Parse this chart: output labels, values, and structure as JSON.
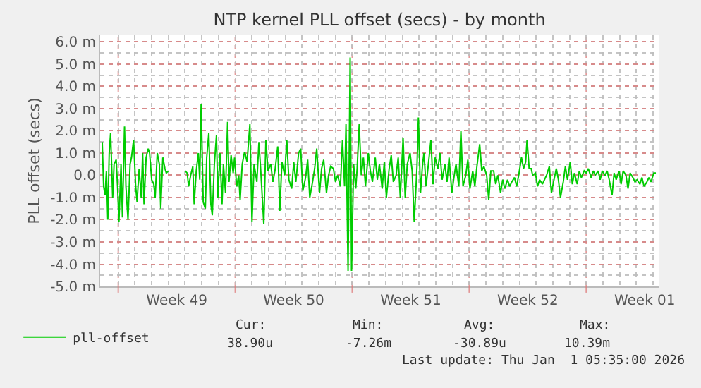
{
  "chart_data": {
    "type": "line",
    "title": "NTP kernel PLL offset (secs) - by month",
    "ylabel": "PLL offset (secs)",
    "x": [
      "2025-11-30T01:00",
      "2025-11-30T03:00",
      "2025-11-30T05:00",
      "2025-11-30T07:00",
      "2025-11-30T09:00",
      "2025-11-30T11:00",
      "2025-11-30T13:00",
      "2025-11-30T16:00",
      "2025-11-30T18:00",
      "2025-11-30T21:00",
      "2025-11-30T23:00",
      "2025-12-01T01:00",
      "2025-12-01T04:00",
      "2025-12-01T06:00",
      "2025-12-01T09:00",
      "2025-12-01T11:00",
      "2025-12-01T14:00",
      "2025-12-01T17:00",
      "2025-12-01T19:00",
      "2025-12-01T22:00",
      "2025-12-02T01:00",
      "2025-12-02T03:00",
      "2025-12-02T06:00",
      "2025-12-02T09:00",
      "2025-12-02T11:00",
      "2025-12-02T13:00",
      "2025-12-02T16:00",
      "2025-12-02T19:00",
      "2025-12-02T21:00",
      "2025-12-03T00:00",
      "2025-12-03T03:00",
      "2025-12-03T05:00",
      "2025-12-03T08:00",
      "2025-12-03T11:00",
      "2025-12-03T13:00",
      "2025-12-03T16:00",
      "2025-12-03T19:00",
      "2025-12-03T21:00",
      "2025-12-04T00:00",
      "2025-12-04T06:00",
      "2025-12-05T00:00",
      "2025-12-05T03:00",
      "2025-12-05T05:00",
      "2025-12-05T08:00",
      "2025-12-05T11:00",
      "2025-12-05T13:00",
      "2025-12-05T16:00",
      "2025-12-05T19:00",
      "2025-12-05T21:00",
      "2025-12-05T23:00",
      "2025-12-06T02:00",
      "2025-12-06T05:00",
      "2025-12-06T07:00",
      "2025-12-06T10:00",
      "2025-12-06T13:00",
      "2025-12-06T15:00",
      "2025-12-06T18:00",
      "2025-12-06T21:00",
      "2025-12-06T23:00",
      "2025-12-07T02:00",
      "2025-12-07T05:00",
      "2025-12-07T07:00",
      "2025-12-07T10:00",
      "2025-12-07T13:00",
      "2025-12-07T15:00",
      "2025-12-07T18:00",
      "2025-12-07T21:00",
      "2025-12-07T23:00",
      "2025-12-08T02:00",
      "2025-12-08T05:00",
      "2025-12-08T07:00",
      "2025-12-08T10:00",
      "2025-12-08T13:00",
      "2025-12-08T14:00",
      "2025-12-08T17:00",
      "2025-12-08T21:00",
      "2025-12-09T00:00",
      "2025-12-09T03:00",
      "2025-12-09T07:00",
      "2025-12-09T10:00",
      "2025-12-09T13:00",
      "2025-12-09T17:00",
      "2025-12-09T20:00",
      "2025-12-09T23:00",
      "2025-12-10T03:00",
      "2025-12-10T06:00",
      "2025-12-10T09:00",
      "2025-12-10T13:00",
      "2025-12-10T16:00",
      "2025-12-10T19:00",
      "2025-12-10T23:00",
      "2025-12-11T02:00",
      "2025-12-11T05:00",
      "2025-12-11T09:00",
      "2025-12-11T12:00",
      "2025-12-11T15:00",
      "2025-12-11T19:00",
      "2025-12-11T22:00",
      "2025-12-12T01:00",
      "2025-12-12T05:00",
      "2025-12-12T08:00",
      "2025-12-12T11:00",
      "2025-12-12T15:00",
      "2025-12-12T18:00",
      "2025-12-12T21:00",
      "2025-12-13T01:00",
      "2025-12-13T04:00",
      "2025-12-13T07:00",
      "2025-12-13T11:00",
      "2025-12-13T14:00",
      "2025-12-13T17:00",
      "2025-12-13T21:00",
      "2025-12-14T00:00",
      "2025-12-14T03:00",
      "2025-12-14T07:00",
      "2025-12-14T10:00",
      "2025-12-14T13:00",
      "2025-12-14T15:00",
      "2025-12-14T18:00",
      "2025-12-14T21:00",
      "2025-12-14T23:00",
      "2025-12-15T02:00",
      "2025-12-15T05:00",
      "2025-12-15T07:00",
      "2025-12-15T10:00",
      "2025-12-15T13:00",
      "2025-12-15T16:00",
      "2025-12-15T19:00",
      "2025-12-15T23:00",
      "2025-12-16T02:00",
      "2025-12-16T05:00",
      "2025-12-16T09:00",
      "2025-12-16T12:00",
      "2025-12-16T15:00",
      "2025-12-16T19:00",
      "2025-12-16T22:00",
      "2025-12-17T01:00",
      "2025-12-17T05:00",
      "2025-12-17T08:00",
      "2025-12-17T11:00",
      "2025-12-17T15:00",
      "2025-12-17T18:00",
      "2025-12-17T21:00",
      "2025-12-18T01:00",
      "2025-12-18T04:00",
      "2025-12-18T07:00",
      "2025-12-18T11:00",
      "2025-12-18T14:00",
      "2025-12-18T17:00",
      "2025-12-18T21:00",
      "2025-12-18T23:00",
      "2025-12-19T02:00",
      "2025-12-19T05:00",
      "2025-12-19T07:00",
      "2025-12-19T10:00",
      "2025-12-19T13:00",
      "2025-12-19T17:00",
      "2025-12-19T20:00",
      "2025-12-19T23:00",
      "2025-12-20T03:00",
      "2025-12-20T06:00",
      "2025-12-20T09:00",
      "2025-12-20T13:00",
      "2025-12-20T16:00",
      "2025-12-20T19:00",
      "2025-12-20T23:00",
      "2025-12-21T02:00",
      "2025-12-21T05:00",
      "2025-12-21T09:00",
      "2025-12-21T12:00",
      "2025-12-21T15:00",
      "2025-12-21T19:00",
      "2025-12-21T22:00",
      "2025-12-22T01:00",
      "2025-12-22T05:00",
      "2025-12-22T08:00",
      "2025-12-22T11:00",
      "2025-12-22T15:00",
      "2025-12-22T18:00",
      "2025-12-22T21:00",
      "2025-12-23T01:00",
      "2025-12-23T04:00",
      "2025-12-23T07:00",
      "2025-12-23T11:00",
      "2025-12-23T14:00",
      "2025-12-23T17:00",
      "2025-12-23T21:00",
      "2025-12-24T00:00",
      "2025-12-24T03:00",
      "2025-12-24T07:00",
      "2025-12-24T10:00",
      "2025-12-24T13:00",
      "2025-12-24T17:00",
      "2025-12-24T20:00",
      "2025-12-24T23:00",
      "2025-12-25T03:00",
      "2025-12-25T06:00",
      "2025-12-25T09:00",
      "2025-12-25T11:00",
      "2025-12-25T14:00",
      "2025-12-25T17:00",
      "2025-12-25T19:00",
      "2025-12-25T23:00",
      "2025-12-26T02:00",
      "2025-12-26T05:00",
      "2025-12-26T09:00",
      "2025-12-26T12:00",
      "2025-12-26T15:00",
      "2025-12-26T19:00",
      "2025-12-26T22:00",
      "2025-12-27T01:00",
      "2025-12-27T05:00",
      "2025-12-27T08:00",
      "2025-12-27T11:00",
      "2025-12-27T15:00",
      "2025-12-27T18:00",
      "2025-12-27T21:00",
      "2025-12-28T01:00",
      "2025-12-28T04:00",
      "2025-12-28T07:00",
      "2025-12-28T11:00",
      "2025-12-28T14:00",
      "2025-12-28T17:00",
      "2025-12-28T21:00",
      "2025-12-29T00:00",
      "2025-12-29T03:00",
      "2025-12-29T07:00",
      "2025-12-29T10:00",
      "2025-12-29T13:00",
      "2025-12-29T17:00",
      "2025-12-29T20:00",
      "2025-12-29T23:00",
      "2025-12-30T03:00",
      "2025-12-30T06:00",
      "2025-12-30T09:00",
      "2025-12-30T13:00",
      "2025-12-30T16:00",
      "2025-12-30T19:00",
      "2025-12-30T23:00",
      "2025-12-31T02:00",
      "2025-12-31T05:00",
      "2025-12-31T09:00",
      "2025-12-31T12:00",
      "2025-12-31T15:00",
      "2025-12-31T19:00",
      "2025-12-31T22:00",
      "2026-01-01T01:00",
      "2026-01-01T05:00",
      "2026-01-01T08:00",
      "2026-01-01T11:00",
      "2026-01-01T15:00",
      "2026-01-01T18:00",
      "2026-01-01T21:00",
      "2026-01-02T01:00",
      "2026-01-02T04:00"
    ],
    "series": [
      {
        "name": "pll-offset",
        "color": "#00cc00",
        "values": [
          1.5,
          -0.5,
          -0.9,
          0.2,
          -2.0,
          1.0,
          1.9,
          -1.0,
          0.5,
          0.7,
          -0.5,
          -2.1,
          0.5,
          -1.9,
          2.2,
          -0.5,
          -2.0,
          0.5,
          0.8,
          1.6,
          -0.5,
          -1.2,
          0.3,
          -1.0,
          1.0,
          -1.3,
          0.8,
          1.2,
          1.0,
          -0.2,
          -0.4,
          -1.0,
          1.0,
          0.5,
          -1.5,
          0.8,
          0.3,
          0.1,
          0.2,
          null,
          0.2,
          0.1,
          -0.5,
          0.0,
          0.4,
          -1.3,
          0.2,
          1.0,
          -0.2,
          3.2,
          -1.2,
          -1.5,
          0.8,
          1.9,
          -1.3,
          -1.8,
          0.5,
          1.8,
          -1.0,
          1.0,
          -1.3,
          0.5,
          -0.8,
          2.4,
          -0.3,
          0.9,
          0.1,
          0.8,
          -0.5,
          0.0,
          -1.1,
          0.5,
          1.0,
          1.0,
          0.6,
          2.3,
          -2.1,
          0.5,
          -0.3,
          1.5,
          0.0,
          -2.2,
          1.6,
          0.2,
          0.5,
          -0.3,
          0.2,
          1.3,
          -1.6,
          0.6,
          0.0,
          1.6,
          -0.2,
          -0.6,
          0.6,
          -0.3,
          1.0,
          1.2,
          -0.7,
          -0.1,
          0.7,
          -1.0,
          -0.3,
          0.3,
          1.2,
          -0.8,
          0.3,
          0.7,
          -0.8,
          0.0,
          0.4,
          0.3,
          -0.3,
          0.0,
          -0.5,
          1.6,
          -0.5,
          2.3,
          -4.3,
          5.3,
          -4.3,
          0.5,
          -0.6,
          0.3,
          2.3,
          0.0,
          0.8,
          -0.5,
          1.0,
          0.2,
          -0.3,
          0.8,
          -0.2,
          0.5,
          -0.6,
          0.6,
          -1.0,
          0.3,
          0.9,
          -0.3,
          0.0,
          0.8,
          -1.0,
          1.7,
          -1.0,
          0.5,
          1.0,
          0.2,
          -2.1,
          0.4,
          2.6,
          -0.8,
          0.5,
          1.0,
          -0.5,
          0.4,
          1.6,
          -0.4,
          0.8,
          0.3,
          1.0,
          -0.2,
          0.5,
          -0.3,
          0.8,
          -0.8,
          -0.1,
          0.5,
          -0.5,
          2.0,
          -0.5,
          0.0,
          0.7,
          -0.6,
          0.2,
          -0.5,
          0.4,
          1.4,
          0.2,
          0.4,
          0.0,
          -1.1,
          0.2,
          0.2,
          -0.4,
          0.0,
          -0.8,
          -0.2,
          -0.6,
          -0.2,
          -0.5,
          -0.3,
          -0.1,
          -0.5,
          0.0,
          0.8,
          0.3,
          0.6,
          1.6,
          0.3,
          0.3,
          0.0,
          0.1,
          -0.5,
          -0.2,
          -0.4,
          -0.2,
          0.0,
          0.4,
          -0.8,
          -0.3,
          0.3,
          -0.2,
          -1.0,
          -0.3,
          0.4,
          -0.2,
          0.6,
          -0.4,
          0.1,
          -0.4,
          0.2,
          -0.1,
          0.2,
          0.1,
          0.3,
          -0.1,
          0.2,
          0.0,
          0.2,
          -0.2,
          0.2,
          0.0,
          0.2,
          -0.2,
          -0.9,
          0.1,
          -0.2,
          0.2,
          -0.4,
          0.2,
          0.0,
          -0.6,
          0.1,
          -0.1,
          -0.3,
          -0.2,
          -0.4,
          -0.1,
          -0.5,
          -0.3,
          -0.1,
          -0.3,
          0.1,
          0.1
        ]
      }
    ],
    "xlim": [
      "2025-11-29T22:00",
      "2026-01-02T08:00"
    ],
    "xticks": [
      {
        "value": "2025-12-01",
        "label": null
      },
      {
        "value": "2025-12-04T12:00",
        "label": "Week 49"
      },
      {
        "value": "2025-12-08",
        "label": null
      },
      {
        "value": "2025-12-11T12:00",
        "label": "Week 50"
      },
      {
        "value": "2025-12-15",
        "label": null
      },
      {
        "value": "2025-12-18T12:00",
        "label": "Week 51"
      },
      {
        "value": "2025-12-22",
        "label": null
      },
      {
        "value": "2025-12-25T12:00",
        "label": "Week 52"
      },
      {
        "value": "2025-12-29",
        "label": null
      },
      {
        "value": "2026-01-01T12:00",
        "label": "Week 01"
      }
    ],
    "ylim": [
      -5.0,
      6.3
    ],
    "yticks": [
      {
        "value": -5.0,
        "label": "-5.0 m"
      },
      {
        "value": -4.0,
        "label": "-4.0 m"
      },
      {
        "value": -3.0,
        "label": "-3.0 m"
      },
      {
        "value": -2.0,
        "label": "-2.0 m"
      },
      {
        "value": -1.0,
        "label": "-1.0 m"
      },
      {
        "value": 0,
        "label": "0.0"
      },
      {
        "value": 1.0,
        "label": "1.0 m"
      },
      {
        "value": 2.0,
        "label": "2.0 m"
      },
      {
        "value": 3.0,
        "label": "3.0 m"
      },
      {
        "value": 4.0,
        "label": "4.0 m"
      },
      {
        "value": 5.0,
        "label": "5.0 m"
      },
      {
        "value": 6.0,
        "label": "6.0 m"
      }
    ],
    "grid": true,
    "legend": "bottom left",
    "marker": "none",
    "line_style": "solid",
    "annotations": [
      "Cur:",
      "38.90u",
      "Min:",
      "-7.26m",
      "Avg:",
      "-30.89u",
      "Max:",
      "10.39m",
      "Last update: Thu Jan  1 05:35:00 2026"
    ]
  }
}
